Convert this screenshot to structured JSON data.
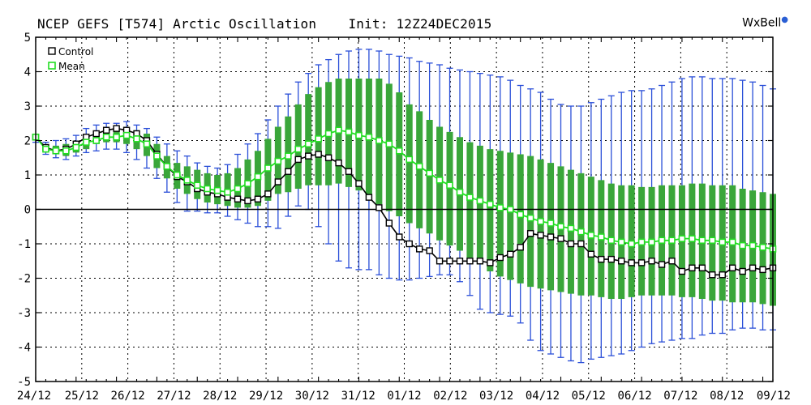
{
  "title": "NCEP GEFS [T574] Arctic Oscillation    Init: 12Z24DEC2015",
  "brand": "WxBell",
  "chart_data": {
    "type": "line",
    "ylim": [
      -5,
      5
    ],
    "yticks": [
      -5,
      -4,
      -3,
      -2,
      -1,
      0,
      1,
      2,
      3,
      4,
      5
    ],
    "x_tick_labels": [
      "24/12",
      "25/12",
      "26/12",
      "27/12",
      "28/12",
      "29/12",
      "30/12",
      "31/12",
      "01/12",
      "02/12",
      "03/12",
      "04/12",
      "05/12",
      "06/12",
      "07/12",
      "08/12",
      "09/12"
    ],
    "x_step": "6h",
    "grid": true,
    "legend": {
      "placement": "top-left",
      "entries": [
        "Control",
        "Mean"
      ]
    },
    "colors": {
      "control": "#000000",
      "mean": "#22dd22",
      "box": "#3aa63a",
      "whisker": "#2a4fd8",
      "grid": "#000000"
    },
    "series": [
      {
        "name": "Control",
        "values": [
          2.1,
          1.8,
          1.7,
          1.75,
          1.9,
          2.1,
          2.2,
          2.3,
          2.35,
          2.3,
          2.2,
          2.0,
          1.6,
          1.25,
          0.95,
          0.8,
          0.6,
          0.5,
          0.45,
          0.35,
          0.3,
          0.25,
          0.3,
          0.45,
          0.8,
          1.1,
          1.45,
          1.55,
          1.6,
          1.5,
          1.35,
          1.1,
          0.75,
          0.35,
          0.05,
          -0.4,
          -0.8,
          -1.0,
          -1.15,
          -1.2,
          -1.5,
          -1.5,
          -1.5,
          -1.5,
          -1.5,
          -1.55,
          -1.4,
          -1.3,
          -1.1,
          -0.7,
          -0.75,
          -0.8,
          -0.85,
          -1.0,
          -1.0,
          -1.3,
          -1.45,
          -1.45,
          -1.5,
          -1.55,
          -1.55,
          -1.5,
          -1.6,
          -1.5,
          -1.8,
          -1.7,
          -1.7,
          -1.9,
          -1.9,
          -1.7,
          -1.8,
          -1.7,
          -1.75,
          -1.7
        ]
      },
      {
        "name": "Mean",
        "values": [
          2.1,
          1.75,
          1.7,
          1.7,
          1.8,
          1.95,
          2.0,
          2.1,
          2.1,
          2.15,
          2.05,
          1.9,
          1.55,
          1.25,
          1.0,
          0.85,
          0.7,
          0.6,
          0.55,
          0.5,
          0.6,
          0.75,
          0.95,
          1.2,
          1.4,
          1.55,
          1.75,
          1.9,
          2.05,
          2.2,
          2.3,
          2.25,
          2.15,
          2.1,
          2.0,
          1.9,
          1.7,
          1.45,
          1.25,
          1.05,
          0.85,
          0.7,
          0.5,
          0.35,
          0.25,
          0.15,
          0.05,
          0.0,
          -0.15,
          -0.25,
          -0.35,
          -0.4,
          -0.5,
          -0.55,
          -0.65,
          -0.75,
          -0.8,
          -0.9,
          -0.95,
          -1.0,
          -0.95,
          -0.95,
          -0.9,
          -0.9,
          -0.85,
          -0.85,
          -0.9,
          -0.9,
          -0.95,
          -0.95,
          -1.05,
          -1.05,
          -1.1,
          -1.15
        ]
      }
    ],
    "box_top": [
      2.1,
      1.85,
      1.85,
      1.9,
      2.0,
      2.15,
      2.25,
      2.35,
      2.4,
      2.4,
      2.3,
      2.2,
      1.9,
      1.55,
      1.35,
      1.25,
      1.15,
      1.05,
      1.0,
      1.05,
      1.2,
      1.45,
      1.7,
      2.05,
      2.4,
      2.7,
      3.05,
      3.35,
      3.55,
      3.7,
      3.8,
      3.8,
      3.8,
      3.8,
      3.8,
      3.65,
      3.4,
      3.05,
      2.85,
      2.6,
      2.4,
      2.25,
      2.1,
      1.95,
      1.85,
      1.75,
      1.7,
      1.65,
      1.6,
      1.55,
      1.45,
      1.35,
      1.25,
      1.15,
      1.05,
      0.95,
      0.85,
      0.75,
      0.7,
      0.7,
      0.65,
      0.65,
      0.7,
      0.7,
      0.7,
      0.75,
      0.75,
      0.7,
      0.7,
      0.7,
      0.6,
      0.55,
      0.5,
      0.45
    ],
    "box_bottom": [
      2.0,
      1.7,
      1.6,
      1.55,
      1.65,
      1.75,
      1.9,
      1.95,
      1.95,
      1.9,
      1.75,
      1.55,
      1.2,
      0.9,
      0.6,
      0.45,
      0.3,
      0.2,
      0.15,
      0.1,
      0.05,
      0.05,
      0.1,
      0.25,
      0.45,
      0.5,
      0.6,
      0.7,
      0.7,
      0.7,
      0.75,
      0.65,
      0.55,
      0.35,
      0.15,
      -0.05,
      -0.2,
      -0.4,
      -0.55,
      -0.7,
      -0.9,
      -1.05,
      -1.2,
      -1.4,
      -1.6,
      -1.8,
      -1.95,
      -2.05,
      -2.15,
      -2.25,
      -2.3,
      -2.35,
      -2.4,
      -2.45,
      -2.5,
      -2.5,
      -2.55,
      -2.6,
      -2.6,
      -2.55,
      -2.5,
      -2.5,
      -2.5,
      -2.5,
      -2.55,
      -2.55,
      -2.6,
      -2.65,
      -2.65,
      -2.7,
      -2.7,
      -2.7,
      -2.75,
      -2.8
    ],
    "whisker_top": [
      2.15,
      1.95,
      2.0,
      2.05,
      2.15,
      2.35,
      2.45,
      2.5,
      2.5,
      2.55,
      2.45,
      2.35,
      2.1,
      1.9,
      1.7,
      1.55,
      1.35,
      1.25,
      1.2,
      1.3,
      1.6,
      1.9,
      2.2,
      2.6,
      3.0,
      3.35,
      3.7,
      3.95,
      4.2,
      4.35,
      4.5,
      4.6,
      4.65,
      4.65,
      4.6,
      4.5,
      4.45,
      4.4,
      4.3,
      4.25,
      4.2,
      4.1,
      4.05,
      4.0,
      3.95,
      3.9,
      3.85,
      3.75,
      3.6,
      3.5,
      3.4,
      3.2,
      3.05,
      3.0,
      3.0,
      3.1,
      3.2,
      3.3,
      3.4,
      3.45,
      3.45,
      3.5,
      3.6,
      3.7,
      3.8,
      3.85,
      3.85,
      3.8,
      3.8,
      3.8,
      3.75,
      3.7,
      3.6,
      3.5
    ],
    "whisker_bottom": [
      1.95,
      1.6,
      1.5,
      1.45,
      1.55,
      1.65,
      1.7,
      1.75,
      1.75,
      1.65,
      1.45,
      1.2,
      0.9,
      0.5,
      0.2,
      -0.05,
      -0.05,
      -0.1,
      -0.1,
      -0.2,
      -0.3,
      -0.4,
      -0.5,
      -0.5,
      -0.55,
      -0.2,
      0.1,
      0.0,
      -0.5,
      -1.0,
      -1.5,
      -1.7,
      -1.75,
      -1.75,
      -1.9,
      -2.0,
      -2.05,
      -2.05,
      -2.0,
      -1.95,
      -1.9,
      -1.9,
      -2.1,
      -2.5,
      -2.9,
      -3.0,
      -3.05,
      -3.1,
      -3.3,
      -3.8,
      -4.1,
      -4.2,
      -4.3,
      -4.4,
      -4.45,
      -4.35,
      -4.3,
      -4.25,
      -4.2,
      -4.1,
      -4.0,
      -3.9,
      -3.85,
      -3.8,
      -3.75,
      -3.75,
      -3.65,
      -3.6,
      -3.6,
      -3.5,
      -3.45,
      -3.45,
      -3.5,
      -3.5
    ]
  }
}
